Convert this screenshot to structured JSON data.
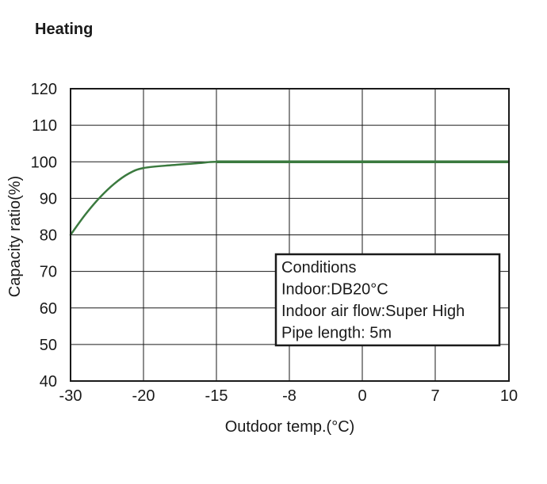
{
  "chart_data": {
    "type": "line",
    "title": "Heating",
    "xlabel": "Outdoor temp.(°C)",
    "ylabel": "Capacity ratio(%)",
    "x_ticks": [
      -30,
      -20,
      -15,
      -8,
      0,
      7,
      10
    ],
    "x_tick_labels": [
      "-30",
      "-20",
      "-15",
      "-8",
      "0",
      "7",
      "10"
    ],
    "y_ticks": [
      40,
      50,
      60,
      70,
      80,
      90,
      100,
      110,
      120
    ],
    "y_tick_labels": [
      "40",
      "50",
      "60",
      "70",
      "80",
      "90",
      "100",
      "110",
      "120"
    ],
    "ylim": [
      40,
      120
    ],
    "grid": true,
    "series": [
      {
        "color": "#3b7a3f",
        "x": [
          -30,
          -28,
          -26,
          -24,
          -22,
          -20,
          -18,
          -16,
          -15,
          -10,
          -5,
          0,
          5,
          10
        ],
        "y": [
          80,
          85.5,
          90.2,
          94,
          96.8,
          98.3,
          99.1,
          99.7,
          100,
          100,
          100,
          100,
          100,
          100
        ]
      }
    ],
    "annotation": {
      "lines": [
        "Conditions",
        "Indoor:DB20°C",
        "Indoor air flow:Super High",
        "Pipe length: 5m"
      ]
    }
  }
}
